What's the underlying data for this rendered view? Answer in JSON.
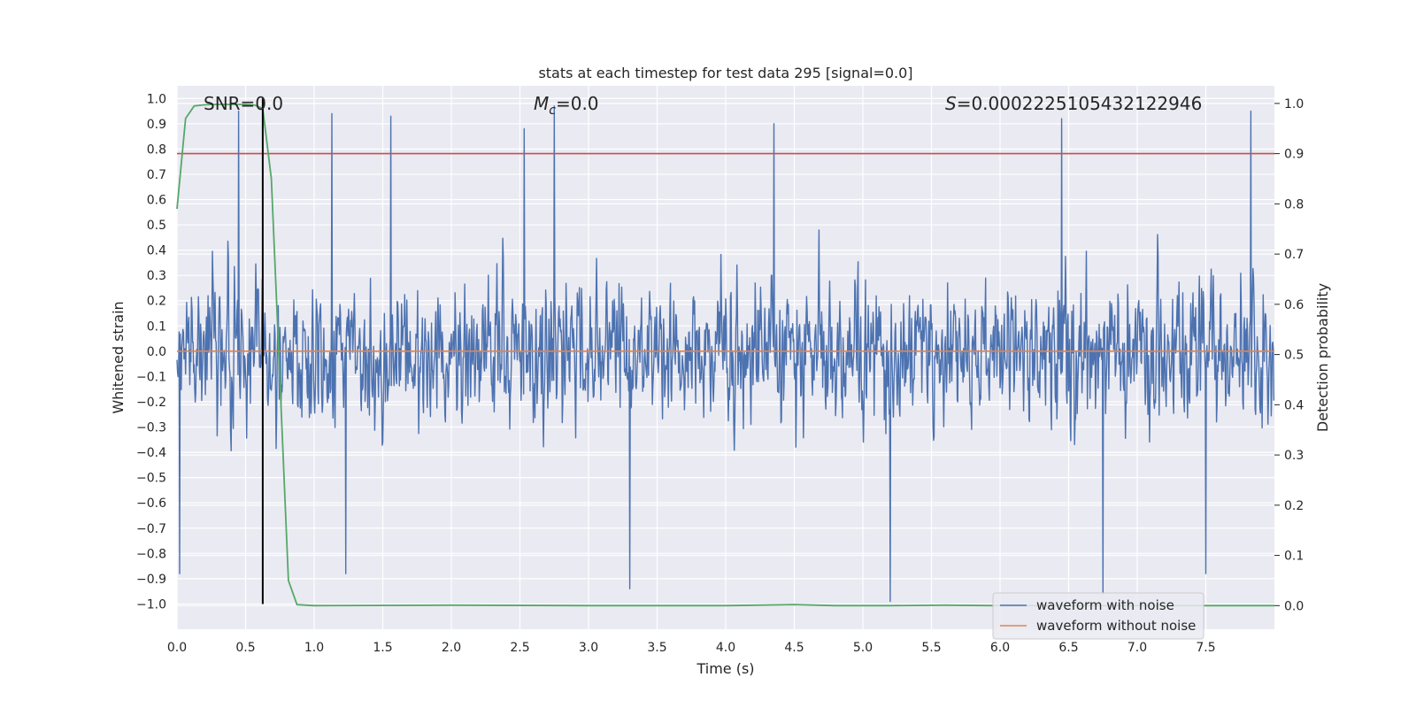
{
  "chart_data": {
    "type": "line",
    "title": "stats at each timestep for test data 295 [signal=0.0]",
    "xlabel": "Time (s)",
    "ylabel": "Whitened strain",
    "y2label": "Detection probability",
    "xlim": [
      0.0,
      8.0
    ],
    "ylim": [
      -1.1,
      1.05
    ],
    "y2lim": [
      -0.047,
      1.035
    ],
    "x_ticks": [
      "0.0",
      "0.5",
      "1.0",
      "1.5",
      "2.0",
      "2.5",
      "3.0",
      "3.5",
      "4.0",
      "4.5",
      "5.0",
      "5.5",
      "6.0",
      "6.5",
      "7.0",
      "7.5"
    ],
    "y_ticks": [
      "1.0",
      "0.9",
      "0.8",
      "0.7",
      "0.6",
      "0.5",
      "0.4",
      "0.3",
      "0.2",
      "0.1",
      "0.0",
      "−0.1",
      "−0.2",
      "−0.3",
      "−0.4",
      "−0.5",
      "−0.6",
      "−0.7",
      "−0.8",
      "−0.9",
      "−1.0"
    ],
    "y2_ticks": [
      "1.0",
      "0.9",
      "0.8",
      "0.7",
      "0.6",
      "0.5",
      "0.4",
      "0.3",
      "0.2",
      "0.1",
      "0.0"
    ],
    "annotations": {
      "snr": "SNR=0.0",
      "mc_symbol": "M",
      "mc_subscript": "c",
      "mc_value": "=0.0",
      "s_symbol": "S",
      "s_value": "=0.0002225105432122946"
    },
    "legend": {
      "position": "lower right",
      "entries": [
        "waveform with noise",
        "waveform without noise"
      ]
    },
    "threshold_line_y2": 0.9,
    "vertical_marker_x": 0.625,
    "grid": true,
    "series": [
      {
        "name": "waveform with noise",
        "color": "#4c72b0",
        "axis": "left",
        "kind": "noise",
        "sample_rate_hz": 256,
        "duration_s": 8.0,
        "approx_range": [
          -0.99,
          0.97
        ],
        "spikes": [
          {
            "x": 0.45,
            "y": 0.95
          },
          {
            "x": 1.13,
            "y": 0.94
          },
          {
            "x": 1.56,
            "y": 0.93
          },
          {
            "x": 2.53,
            "y": 0.88
          },
          {
            "x": 2.75,
            "y": 0.97
          },
          {
            "x": 4.35,
            "y": 0.9
          },
          {
            "x": 6.45,
            "y": 0.92
          },
          {
            "x": 7.83,
            "y": 0.95
          },
          {
            "x": 0.02,
            "y": -0.88
          },
          {
            "x": 3.3,
            "y": -0.94
          },
          {
            "x": 5.2,
            "y": -0.99
          },
          {
            "x": 6.75,
            "y": -0.96
          },
          {
            "x": 1.23,
            "y": -0.88
          },
          {
            "x": 7.5,
            "y": -0.88
          }
        ]
      },
      {
        "name": "waveform without noise",
        "color": "#dd8452",
        "axis": "left",
        "x": [
          0.0,
          8.0
        ],
        "y": [
          0.0,
          0.0
        ]
      },
      {
        "name": "detection probability",
        "color": "#55a868",
        "axis": "right",
        "x": [
          0.0,
          0.0625,
          0.125,
          0.1875,
          0.25,
          0.3125,
          0.375,
          0.4375,
          0.5,
          0.5625,
          0.625,
          0.6875,
          0.75,
          0.8125,
          0.875,
          1.0,
          2.0,
          3.0,
          4.0,
          4.5,
          4.8,
          5.2,
          5.6,
          6.0,
          8.0
        ],
        "y": [
          0.79,
          0.97,
          0.995,
          0.997,
          0.998,
          0.998,
          0.998,
          0.998,
          0.998,
          0.997,
          0.99,
          0.85,
          0.45,
          0.05,
          0.002,
          0.0,
          0.001,
          0.0,
          0.0,
          0.002,
          0.0,
          0.0,
          0.001,
          0.0,
          0.0
        ]
      }
    ],
    "colors": {
      "axes_bg": "#eaeaf2",
      "grid": "#ffffff",
      "threshold": "#c44e52",
      "marker": "#000000",
      "text": "#262626"
    }
  }
}
